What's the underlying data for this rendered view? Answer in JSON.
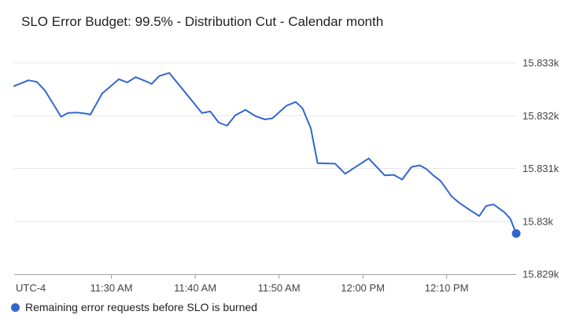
{
  "title": "SLO Error Budget: 99.5% - Distribution Cut - Calendar month",
  "legend": {
    "marker_icon": "circle-icon",
    "label": "Remaining error requests before SLO is burned"
  },
  "colors": {
    "line": "#3366cc",
    "endpoint_dot": "#3366cc",
    "legend_marker": "#3366cc",
    "grid": "#e6e6e6",
    "axis_line": "#9e9e9e",
    "tick": "#9e9e9e",
    "axis_label_text": "#444444",
    "title_text": "#1f1f1f",
    "legend_text": "#212121",
    "background": "#ffffff"
  },
  "chart_data": {
    "type": "line",
    "title": "SLO Error Budget: 99.5% - Distribution Cut - Calendar month",
    "grid": true,
    "legend_position": "bottom-left",
    "x_axis": {
      "utc_label": "UTC-4",
      "tick_labels": [
        "11:30 AM",
        "11:40 AM",
        "11:50 AM",
        "12:00 PM",
        "12:10 PM"
      ],
      "tick_minutes_after_11am": [
        30,
        40,
        50,
        60,
        70
      ],
      "range_minutes_after_11am": [
        18.4,
        78.3
      ]
    },
    "y_axis": {
      "tick_labels": [
        "15.829k",
        "15.83k",
        "15.831k",
        "15.832k",
        "15.833k"
      ],
      "tick_values": [
        15829,
        15830,
        15831,
        15832,
        15833
      ],
      "range": [
        15829,
        15833
      ]
    },
    "series": [
      {
        "name": "Remaining error requests before SLO is burned",
        "color": "#3366cc",
        "endpoint_dot": true,
        "points": [
          [
            18.4,
            15832.56
          ],
          [
            20.1,
            15832.67
          ],
          [
            21.1,
            15832.64
          ],
          [
            22.1,
            15832.47
          ],
          [
            24.0,
            15831.98
          ],
          [
            24.8,
            15832.05
          ],
          [
            25.8,
            15832.06
          ],
          [
            27.0,
            15832.04
          ],
          [
            27.5,
            15832.02
          ],
          [
            28.9,
            15832.42
          ],
          [
            29.8,
            15832.54
          ],
          [
            30.9,
            15832.69
          ],
          [
            31.9,
            15832.63
          ],
          [
            32.9,
            15832.73
          ],
          [
            34.0,
            15832.66
          ],
          [
            34.8,
            15832.6
          ],
          [
            35.7,
            15832.75
          ],
          [
            36.9,
            15832.81
          ],
          [
            38.5,
            15832.5
          ],
          [
            40.8,
            15832.05
          ],
          [
            41.8,
            15832.08
          ],
          [
            42.8,
            15831.87
          ],
          [
            43.8,
            15831.81
          ],
          [
            44.8,
            15832.01
          ],
          [
            46.0,
            15832.11
          ],
          [
            47.2,
            15831.99
          ],
          [
            48.3,
            15831.93
          ],
          [
            49.2,
            15831.95
          ],
          [
            50.9,
            15832.19
          ],
          [
            52.0,
            15832.26
          ],
          [
            52.8,
            15832.14
          ],
          [
            53.8,
            15831.76
          ],
          [
            54.6,
            15831.1
          ],
          [
            56.7,
            15831.09
          ],
          [
            57.9,
            15830.9
          ],
          [
            60.7,
            15831.19
          ],
          [
            62.6,
            15830.87
          ],
          [
            63.7,
            15830.88
          ],
          [
            64.7,
            15830.79
          ],
          [
            65.8,
            15831.03
          ],
          [
            66.8,
            15831.06
          ],
          [
            67.6,
            15830.99
          ],
          [
            68.4,
            15830.87
          ],
          [
            69.3,
            15830.76
          ],
          [
            70.6,
            15830.47
          ],
          [
            71.5,
            15830.35
          ],
          [
            72.9,
            15830.2
          ],
          [
            73.9,
            15830.1
          ],
          [
            74.7,
            15830.29
          ],
          [
            75.6,
            15830.32
          ],
          [
            76.9,
            15830.17
          ],
          [
            77.6,
            15830.05
          ],
          [
            78.3,
            15829.77
          ]
        ]
      }
    ]
  }
}
